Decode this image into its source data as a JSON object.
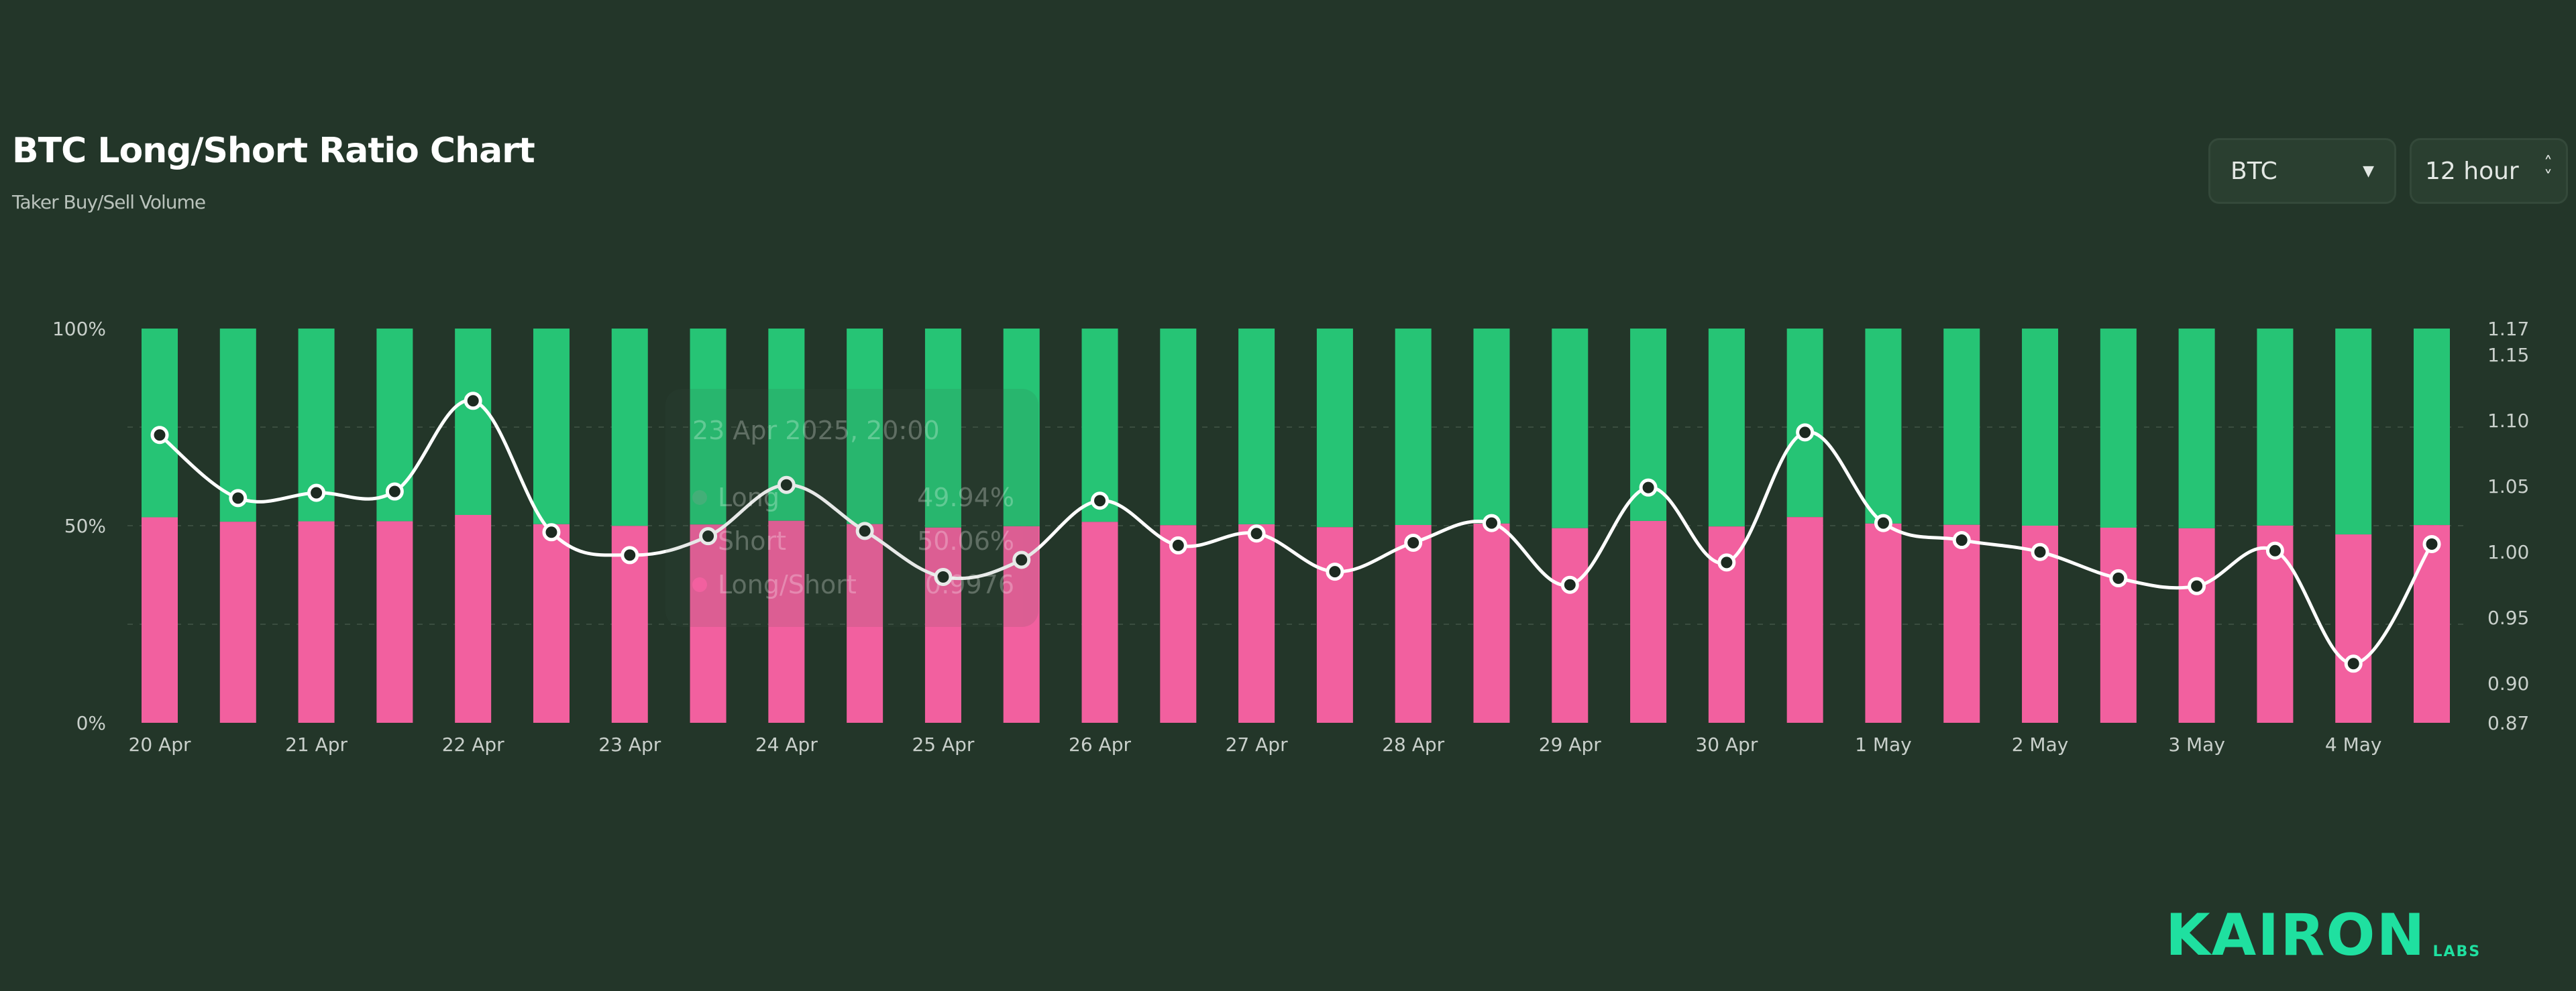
{
  "header": {
    "title": "BTC Long/Short Ratio Chart",
    "subtitle": "Taker Buy/Sell Volume"
  },
  "controls": {
    "coin": "BTC",
    "coin_icon": "caret-down-icon",
    "interval": "12 hour",
    "interval_icon": "chevron-up-down-icon"
  },
  "tooltip": {
    "date": "23 Apr 2025, 20:00",
    "rows": [
      {
        "label": "Long",
        "value": "49.94%"
      },
      {
        "label": "Short",
        "value": "50.06%"
      },
      {
        "label": "Long/Short",
        "value": "0.9976"
      }
    ]
  },
  "logo": {
    "main": "KAIRON",
    "sub": "LABS"
  },
  "chart_data": {
    "type": "bar",
    "stacked": true,
    "title": "BTC Long/Short Ratio Chart",
    "subtitle": "Taker Buy/Sell Volume",
    "x_tick_labels": [
      "20 Apr",
      "21 Apr",
      "22 Apr",
      "23 Apr",
      "24 Apr",
      "25 Apr",
      "26 Apr",
      "27 Apr",
      "28 Apr",
      "29 Apr",
      "30 Apr",
      "1 May",
      "2 May",
      "3 May",
      "4 May"
    ],
    "y_left": {
      "ticks": [
        "0%",
        "50%",
        "100%"
      ],
      "range": [
        0,
        100
      ]
    },
    "y_right": {
      "ticks": [
        "0.87",
        "0.90",
        "0.95",
        "1.00",
        "1.05",
        "1.10",
        "1.15",
        "1.17"
      ],
      "range": [
        0.87,
        1.17
      ]
    },
    "colors": {
      "long": "#f2609f",
      "short": "#26c475",
      "ratio": "#ffffff",
      "background": "#233629"
    },
    "series": [
      {
        "name": "Long",
        "values": [
          52.13,
          51.0,
          51.1,
          51.12,
          52.72,
          50.37,
          49.94,
          50.3,
          51.24,
          50.4,
          49.52,
          49.85,
          50.96,
          50.12,
          50.35,
          49.62,
          50.17,
          50.54,
          49.37,
          51.2,
          49.8,
          52.18,
          50.54,
          50.22,
          50.0,
          49.49,
          49.34,
          50.02,
          47.78,
          50.15
        ]
      },
      {
        "name": "Short",
        "values": [
          47.87,
          49.0,
          48.9,
          48.88,
          47.28,
          49.63,
          50.06,
          49.7,
          48.76,
          49.6,
          50.48,
          50.15,
          49.04,
          49.88,
          49.65,
          50.38,
          49.83,
          49.46,
          50.63,
          48.8,
          50.2,
          47.82,
          49.46,
          49.78,
          50.0,
          50.51,
          50.66,
          49.98,
          52.22,
          49.85
        ]
      },
      {
        "name": "Long/Short",
        "type": "line",
        "axis": "right",
        "values": [
          1.089,
          1.041,
          1.045,
          1.046,
          1.115,
          1.015,
          0.9976,
          1.012,
          1.051,
          1.016,
          0.981,
          0.994,
          1.039,
          1.005,
          1.014,
          0.985,
          1.007,
          1.022,
          0.975,
          1.049,
          0.992,
          1.091,
          1.022,
          1.009,
          1.0,
          0.98,
          0.974,
          1.001,
          0.915,
          1.006
        ]
      }
    ],
    "grid": true
  }
}
